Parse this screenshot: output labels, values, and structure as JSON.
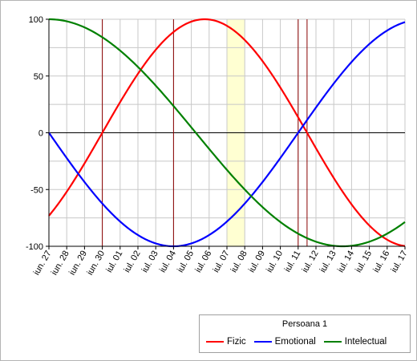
{
  "chart_data": {
    "type": "line",
    "title": "",
    "xlabel": "",
    "ylabel": "",
    "ylim": [
      -100,
      100
    ],
    "yticks": [
      100,
      50,
      0,
      -50,
      -100
    ],
    "grid": true,
    "x": [
      "iun. 27",
      "iun. 28",
      "iun. 29",
      "iun. 30",
      "iul. 01",
      "iul. 02",
      "iul. 03",
      "iul. 04",
      "iul. 05",
      "iul. 06",
      "iul. 07",
      "iul. 08",
      "iul. 09",
      "iul. 10",
      "iul. 11",
      "iul. 12",
      "iul. 13",
      "iul. 14",
      "iul. 15",
      "iul. 16",
      "iul. 17"
    ],
    "highlight_range": [
      "iul. 07",
      "iul. 08"
    ],
    "vertical_markers": [
      "iun. 30",
      "iul. 04",
      "iul. 11",
      "iul. 11.5"
    ],
    "series": [
      {
        "name": "Fizic",
        "color": "#ff0000",
        "period": 23,
        "zero_day": 3
      },
      {
        "name": "Emotional",
        "color": "#0000ff",
        "period": 28,
        "zero_day": 0,
        "direction": -1
      },
      {
        "name": "Intelectual",
        "color": "#008000",
        "period": 33,
        "zero_day": 8.25,
        "direction": -1
      }
    ],
    "legend": {
      "title": "Persoana 1",
      "placement": "bottom-right"
    }
  }
}
